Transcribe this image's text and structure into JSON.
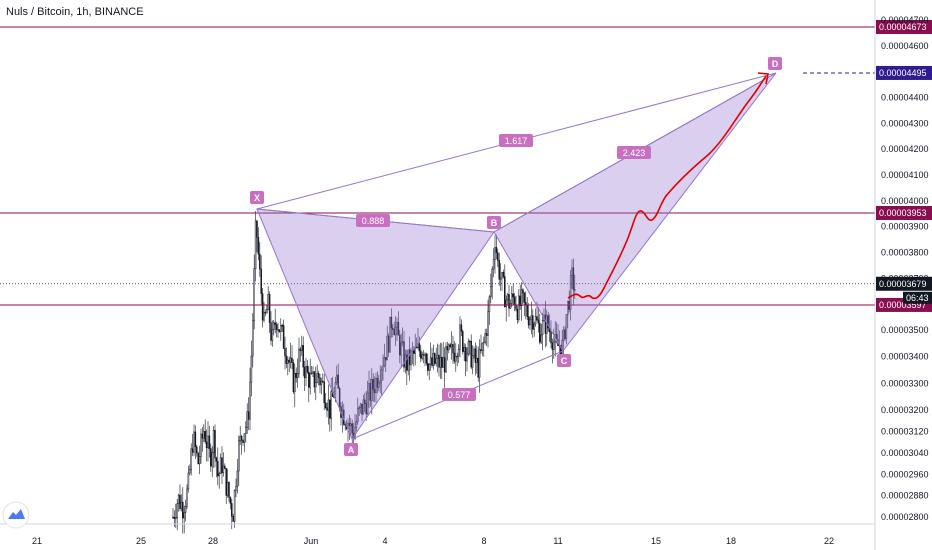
{
  "chart_data": {
    "type": "candlestick",
    "title": "Nuls / Bitcoin, 1h, BINANCE",
    "ylim": [
      2.76e-05,
      4.73e-05
    ],
    "x_tick_labels": [
      "21",
      "25",
      "28",
      "Jun",
      "4",
      "8",
      "11",
      "15",
      "18",
      "22"
    ],
    "y_tick_labels": [
      "0.00004700",
      "0.00004600",
      "0.00004400",
      "0.00004300",
      "0.00004200",
      "0.00004100",
      "0.00004000",
      "0.00003900",
      "0.00003800",
      "0.00003700",
      "0.00003500",
      "0.00003400",
      "0.00003300",
      "0.00003200",
      "0.00003120",
      "0.00003040",
      "0.00002960",
      "0.00002880",
      "0.00002800"
    ],
    "horizontal_levels": [
      {
        "value": "0.00004673",
        "color": "#880e4f"
      },
      {
        "value": "0.00003953",
        "color": "#880e4f"
      },
      {
        "value": "0.00003597",
        "color": "#880e4f"
      }
    ],
    "current_price": {
      "value": "0.00003679",
      "countdown": "06:43"
    },
    "target_level": {
      "value": "0.00004495",
      "color": "#311b92"
    },
    "pattern": {
      "points": [
        {
          "label": "X",
          "x": "May 29",
          "y": 3.953e-05
        },
        {
          "label": "A",
          "x": "Jun 3",
          "y": 3.095e-05
        },
        {
          "label": "B",
          "x": "Jun 8",
          "y": 3.862e-05
        },
        {
          "label": "C",
          "x": "Jun 11",
          "y": 3.42e-05
        },
        {
          "label": "D",
          "x": "Jun 19",
          "y": 4.495e-05
        }
      ],
      "ratios": [
        {
          "label": "0.888",
          "between": "X-B"
        },
        {
          "label": "0.577",
          "between": "A-C"
        },
        {
          "label": "2.423",
          "between": "B-D"
        },
        {
          "label": "1.617",
          "between": "X-D"
        }
      ],
      "fill_color": "#9575cd",
      "badge_color": "#c86fc0"
    },
    "projection_color": "#e00000",
    "grid": false
  }
}
